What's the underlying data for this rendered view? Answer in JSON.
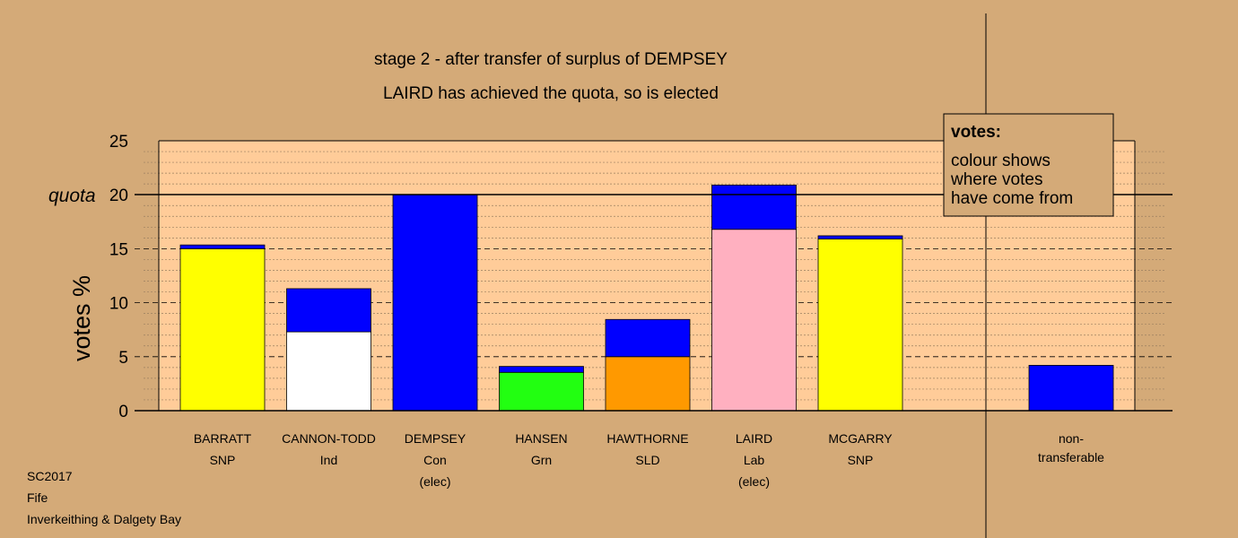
{
  "chart_data": {
    "type": "bar",
    "subtype": "stacked",
    "title": "stage 2 - after transfer of surplus of DEMPSEY",
    "subtitle": "LAIRD has achieved the quota, so is elected",
    "ylabel": "votes %",
    "ylim": [
      0,
      25
    ],
    "yticks": [
      0,
      5,
      10,
      15,
      20,
      25
    ],
    "quota": {
      "label": "quota",
      "value": 20
    },
    "grid": "dotted minor every 1, dashed major every 5",
    "categories": [
      {
        "name": "BARRATT",
        "party": "SNP",
        "note": ""
      },
      {
        "name": "CANNON-TODD",
        "party": "Ind",
        "note": ""
      },
      {
        "name": "DEMPSEY",
        "party": "Con",
        "note": "(elec)"
      },
      {
        "name": "HANSEN",
        "party": "Grn",
        "note": ""
      },
      {
        "name": "HAWTHORNE",
        "party": "SLD",
        "note": ""
      },
      {
        "name": "LAIRD",
        "party": "Lab",
        "note": "(elec)"
      },
      {
        "name": "MCGARRY",
        "party": "SNP",
        "note": ""
      }
    ],
    "nontransferable": {
      "label_line1": "non-",
      "label_line2": "transferable",
      "value": 4.2,
      "color": "#0000ff"
    },
    "bars": [
      {
        "segments": [
          {
            "value": 15.0,
            "color": "#ffff00"
          },
          {
            "value": 0.35,
            "color": "#0000ff"
          }
        ]
      },
      {
        "segments": [
          {
            "value": 7.3,
            "color": "#ffffff"
          },
          {
            "value": 4.0,
            "color": "#0000ff"
          }
        ]
      },
      {
        "segments": [
          {
            "value": 20.0,
            "color": "#0000ff"
          }
        ]
      },
      {
        "segments": [
          {
            "value": 3.55,
            "color": "#22ff11"
          },
          {
            "value": 0.55,
            "color": "#0000ff"
          }
        ]
      },
      {
        "segments": [
          {
            "value": 5.0,
            "color": "#ff9900"
          },
          {
            "value": 3.45,
            "color": "#0000ff"
          }
        ]
      },
      {
        "segments": [
          {
            "value": 16.8,
            "color": "#ffb0c0"
          },
          {
            "value": 4.1,
            "color": "#0000ff"
          }
        ]
      },
      {
        "segments": [
          {
            "value": 15.9,
            "color": "#ffff00"
          },
          {
            "value": 0.3,
            "color": "#0000ff"
          }
        ]
      }
    ]
  },
  "legend": {
    "title": "votes:",
    "lines": [
      "colour shows",
      "where votes",
      "have come from"
    ]
  },
  "footer": [
    "SC2017",
    "Fife",
    "Inverkeithing & Dalgety Bay"
  ]
}
